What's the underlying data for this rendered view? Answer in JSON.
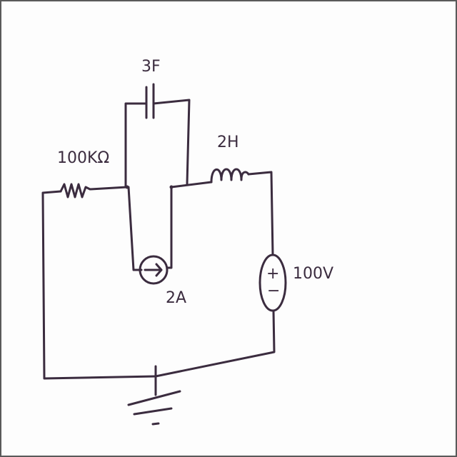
{
  "diagram": {
    "ink": "#3b2c3f",
    "components": {
      "resistor": {
        "label": "100KΩ"
      },
      "capacitor": {
        "label": "3F"
      },
      "inductor": {
        "label": "2H"
      },
      "current_source": {
        "label": "2A"
      },
      "voltage_source": {
        "label": "100V",
        "plus": "+",
        "minus": "−"
      }
    }
  }
}
